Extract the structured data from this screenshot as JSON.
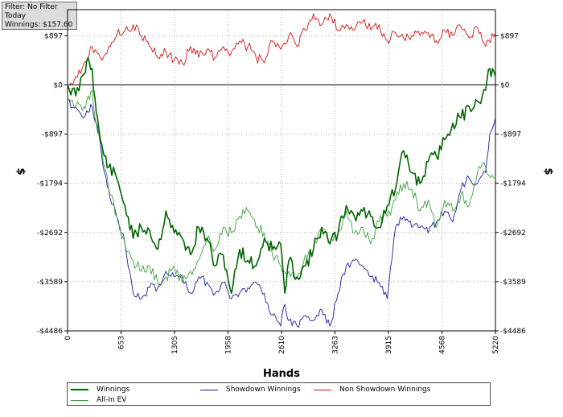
{
  "info_box": {
    "filter": "Filter: No Filter",
    "period": "Today",
    "winnings": "Winnings: $157.60"
  },
  "colors": {
    "winnings": "#006400",
    "showdown": "#1c1ca0",
    "non_showdown": "#d21414",
    "allin_ev": "#3fa03f",
    "zero_line": "#000000",
    "grid": "#b4b4b4"
  },
  "chart_data": {
    "type": "line",
    "title": "",
    "xlabel": "Hands",
    "ylabel": "$",
    "xlim": [
      0,
      5220
    ],
    "ylim": [
      -4486,
      1371
    ],
    "x_ticks": [
      0,
      653,
      1305,
      1958,
      2610,
      3263,
      3915,
      4568,
      5220
    ],
    "x_tick_labels": [
      "0",
      "653",
      "1305",
      "1958",
      "2610",
      "3263",
      "3915",
      "4568",
      "5220"
    ],
    "y_ticks": [
      897,
      0,
      -897,
      -1794,
      -2692,
      -3589,
      -4486
    ],
    "y_tick_labels": [
      "$897",
      "$0",
      "-$897",
      "-$1794",
      "-$2692",
      "-$3589",
      "-$4486"
    ],
    "grid": true,
    "legend_position": "bottom",
    "series": [
      {
        "name": "Winnings",
        "x": [
          0,
          100,
          200,
          250,
          300,
          350,
          400,
          450,
          500,
          600,
          700,
          800,
          900,
          1000,
          1100,
          1200,
          1300,
          1400,
          1500,
          1600,
          1700,
          1800,
          1900,
          2000,
          2100,
          2200,
          2300,
          2400,
          2500,
          2600,
          2650,
          2700,
          2800,
          2900,
          3000,
          3100,
          3200,
          3300,
          3400,
          3500,
          3600,
          3700,
          3800,
          3900,
          4000,
          4100,
          4200,
          4300,
          4400,
          4500,
          4600,
          4700,
          4800,
          4900,
          5000,
          5100,
          5150,
          5220
        ],
        "y": [
          0,
          -200,
          200,
          500,
          300,
          -500,
          -1000,
          -1300,
          -1500,
          -1700,
          -2200,
          -2800,
          -2600,
          -2650,
          -3000,
          -2300,
          -2700,
          -2800,
          -3100,
          -2600,
          -2800,
          -3300,
          -3100,
          -3800,
          -3000,
          -3200,
          -3300,
          -2800,
          -3000,
          -2900,
          -3800,
          -3200,
          -3500,
          -3300,
          -3000,
          -2600,
          -2900,
          -2700,
          -2200,
          -2400,
          -2300,
          -2400,
          -2600,
          -2200,
          -1900,
          -1200,
          -1600,
          -1800,
          -1400,
          -1300,
          -1000,
          -700,
          -600,
          -400,
          -300,
          -100,
          300,
          150
        ]
      },
      {
        "name": "Showdown Winnings",
        "x": [
          0,
          100,
          200,
          250,
          300,
          350,
          400,
          450,
          500,
          600,
          700,
          800,
          900,
          1000,
          1100,
          1200,
          1300,
          1400,
          1500,
          1600,
          1700,
          1800,
          1900,
          2000,
          2100,
          2200,
          2300,
          2400,
          2500,
          2600,
          2650,
          2700,
          2800,
          2900,
          3000,
          3100,
          3200,
          3300,
          3400,
          3500,
          3600,
          3700,
          3800,
          3900,
          4000,
          4100,
          4200,
          4300,
          4400,
          4500,
          4600,
          4700,
          4800,
          4900,
          5000,
          5100,
          5150,
          5220
        ],
        "y": [
          -300,
          -400,
          -600,
          -500,
          -400,
          -700,
          -1100,
          -1600,
          -1900,
          -2400,
          -2900,
          -3800,
          -3900,
          -3700,
          -3700,
          -3400,
          -3500,
          -3500,
          -3800,
          -3500,
          -3600,
          -3800,
          -3600,
          -3900,
          -3800,
          -3700,
          -3600,
          -3800,
          -4200,
          -4400,
          -4000,
          -4300,
          -4400,
          -4200,
          -4300,
          -4100,
          -4400,
          -3800,
          -3300,
          -3200,
          -3300,
          -3500,
          -3600,
          -3900,
          -2600,
          -2400,
          -2600,
          -2600,
          -2700,
          -2500,
          -2300,
          -2500,
          -1900,
          -1700,
          -1800,
          -1600,
          -900,
          -600
        ]
      },
      {
        "name": "Non Showdown Winnings",
        "x": [
          0,
          100,
          200,
          300,
          400,
          500,
          600,
          700,
          800,
          900,
          1000,
          1100,
          1200,
          1300,
          1400,
          1500,
          1600,
          1700,
          1800,
          1900,
          2000,
          2100,
          2200,
          2300,
          2400,
          2500,
          2600,
          2700,
          2800,
          2900,
          3000,
          3100,
          3200,
          3300,
          3400,
          3500,
          3600,
          3700,
          3800,
          3900,
          4000,
          4100,
          4200,
          4300,
          4400,
          4500,
          4600,
          4700,
          4800,
          4900,
          5000,
          5100,
          5220
        ],
        "y": [
          0,
          150,
          400,
          700,
          500,
          700,
          900,
          1000,
          1100,
          900,
          700,
          500,
          600,
          450,
          400,
          700,
          500,
          650,
          500,
          700,
          600,
          800,
          700,
          500,
          400,
          800,
          650,
          900,
          700,
          1000,
          1300,
          1100,
          1300,
          1000,
          1100,
          1000,
          1150,
          1000,
          1100,
          800,
          950,
          850,
          900,
          900,
          950,
          800,
          1000,
          900,
          1050,
          850,
          1050,
          700,
          950
        ]
      },
      {
        "name": "All-In EV",
        "x": [
          0,
          100,
          200,
          250,
          300,
          350,
          400,
          450,
          500,
          600,
          700,
          800,
          900,
          1000,
          1100,
          1200,
          1300,
          1400,
          1500,
          1600,
          1700,
          1800,
          1900,
          2000,
          2100,
          2200,
          2300,
          2400,
          2500,
          2600,
          2700,
          2800,
          2900,
          3000,
          3100,
          3200,
          3300,
          3400,
          3500,
          3600,
          3700,
          3800,
          3900,
          4000,
          4100,
          4200,
          4300,
          4400,
          4500,
          4600,
          4700,
          4800,
          4900,
          5000,
          5100,
          5220
        ],
        "y": [
          -300,
          -400,
          -400,
          -200,
          -100,
          -700,
          -1000,
          -1500,
          -1900,
          -2400,
          -2900,
          -3200,
          -3400,
          -3300,
          -3600,
          -3500,
          -3300,
          -3600,
          -3400,
          -3200,
          -2800,
          -3000,
          -2600,
          -2700,
          -2400,
          -2300,
          -2600,
          -2700,
          -3100,
          -3300,
          -3400,
          -3500,
          -3100,
          -3000,
          -2600,
          -2900,
          -2700,
          -2300,
          -2700,
          -2600,
          -2900,
          -2500,
          -2400,
          -2100,
          -1800,
          -1900,
          -2300,
          -2100,
          -2600,
          -2100,
          -2300,
          -2000,
          -2200,
          -1600,
          -1500,
          -1700
        ]
      }
    ]
  }
}
